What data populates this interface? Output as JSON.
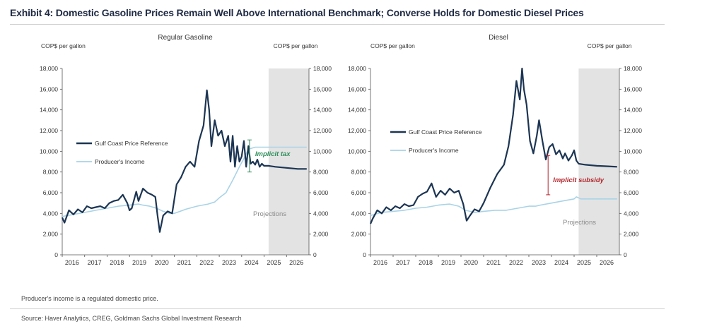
{
  "title": "Exhibit 4: Domestic Gasoline Prices Remain Well Above International Benchmark; Converse Holds for Domestic Diesel Prices",
  "footnote": "Producer's income is a regulated domestic price.",
  "source": "Source: Haver Analytics, CREG, Goldman Sachs Global Investment Research",
  "colors": {
    "gulf_coast": "#1c3553",
    "producer": "#a9d3e6",
    "implicit_tax": "#2f8f5b",
    "implicit_subsidy": "#b3252b",
    "projection_shade": "#e3e3e3"
  },
  "chart_data": [
    {
      "type": "line",
      "title": "Regular Gasoline",
      "ylabel_left": "COP$ per gallon",
      "ylabel_right": "COP$ per gallon",
      "ylim": [
        0,
        18000
      ],
      "yticks": [
        "0",
        "2,000",
        "4,000",
        "6,000",
        "8,000",
        "10,000",
        "12,000",
        "14,000",
        "16,000",
        "18,000"
      ],
      "xlim": [
        2016,
        2027
      ],
      "xticks": [
        "2016",
        "2017",
        "2018",
        "2019",
        "2020",
        "2021",
        "2022",
        "2023",
        "2024",
        "2025",
        "2026"
      ],
      "projection_start": 2025.2,
      "projection_label": "Projections",
      "annotation": "Implicit tax",
      "annotation_range": [
        2024.35,
        8000,
        11100
      ],
      "legend": [
        "Gulf Coast Price Reference",
        "Producer's Income"
      ],
      "series": [
        {
          "name": "Gulf Coast Price Reference",
          "x": [
            2016.0,
            2016.1,
            2016.3,
            2016.5,
            2016.7,
            2016.9,
            2017.1,
            2017.3,
            2017.5,
            2017.7,
            2017.9,
            2018.1,
            2018.3,
            2018.5,
            2018.7,
            2018.9,
            2019.0,
            2019.1,
            2019.3,
            2019.4,
            2019.6,
            2019.8,
            2020.0,
            2020.15,
            2020.25,
            2020.35,
            2020.5,
            2020.7,
            2020.9,
            2021.1,
            2021.3,
            2021.5,
            2021.7,
            2021.9,
            2022.1,
            2022.3,
            2022.45,
            2022.55,
            2022.65,
            2022.8,
            2022.95,
            2023.1,
            2023.25,
            2023.4,
            2023.5,
            2023.6,
            2023.7,
            2023.8,
            2023.9,
            2024.0,
            2024.1,
            2024.2,
            2024.3,
            2024.4,
            2024.5,
            2024.6,
            2024.7,
            2024.8,
            2024.9,
            2025.0,
            2025.2,
            2025.5,
            2026.0,
            2026.5,
            2026.9
          ],
          "y": [
            3600,
            3100,
            4300,
            3900,
            4400,
            4100,
            4700,
            4500,
            4600,
            4700,
            4500,
            5000,
            5200,
            5300,
            5800,
            5000,
            4300,
            4500,
            6100,
            5200,
            6400,
            6000,
            5800,
            5600,
            3800,
            2200,
            3800,
            4200,
            4000,
            6800,
            7500,
            8500,
            9000,
            8500,
            11000,
            12500,
            15900,
            14000,
            10500,
            13000,
            11500,
            12000,
            10500,
            11500,
            9000,
            11500,
            8500,
            10500,
            9000,
            9500,
            11000,
            8500,
            10500,
            8800,
            9000,
            8700,
            9200,
            8500,
            8800,
            8600,
            8600,
            8500,
            8400,
            8300,
            8300
          ]
        },
        {
          "name": "Producer's Income",
          "x": [
            2016.0,
            2016.5,
            2017.0,
            2017.5,
            2018.0,
            2018.5,
            2019.0,
            2019.4,
            2019.6,
            2019.9,
            2020.2,
            2020.5,
            2020.8,
            2021.0,
            2021.5,
            2022.0,
            2022.5,
            2022.8,
            2023.0,
            2023.3,
            2023.6,
            2023.9,
            2024.1,
            2024.3,
            2024.6,
            2025.0,
            2025.5,
            2026.0,
            2026.9
          ],
          "y": [
            3700,
            3900,
            4100,
            4300,
            4500,
            4700,
            4800,
            4900,
            4800,
            4700,
            4500,
            4200,
            4000,
            4000,
            4400,
            4700,
            4900,
            5100,
            5500,
            6000,
            7200,
            8500,
            9300,
            10200,
            10400,
            10400,
            10400,
            10400,
            10400
          ]
        }
      ]
    },
    {
      "type": "line",
      "title": "Diesel",
      "ylabel_left": "COP$ per gallon",
      "ylabel_right": "COP$ per gallon",
      "ylim": [
        0,
        18000
      ],
      "yticks": [
        "0",
        "2,000",
        "4,000",
        "6,000",
        "8,000",
        "10,000",
        "12,000",
        "14,000",
        "16,000",
        "18,000"
      ],
      "xlim": [
        2016,
        2027
      ],
      "xticks": [
        "2016",
        "2017",
        "2018",
        "2019",
        "2020",
        "2021",
        "2022",
        "2023",
        "2024",
        "2025",
        "2026"
      ],
      "projection_start": 2025.2,
      "projection_label": "Projections",
      "annotation": "Implicit subsidy",
      "annotation_range": [
        2023.85,
        5800,
        9600
      ],
      "legend": [
        "Gulf Coast Price Reference",
        "Producer's Income"
      ],
      "series": [
        {
          "name": "Gulf Coast Price Reference",
          "x": [
            2016.0,
            2016.1,
            2016.3,
            2016.5,
            2016.7,
            2016.9,
            2017.1,
            2017.3,
            2017.5,
            2017.7,
            2017.9,
            2018.1,
            2018.3,
            2018.5,
            2018.7,
            2018.9,
            2019.1,
            2019.3,
            2019.5,
            2019.7,
            2019.9,
            2020.1,
            2020.25,
            2020.4,
            2020.6,
            2020.8,
            2021.0,
            2021.3,
            2021.6,
            2021.9,
            2022.1,
            2022.3,
            2022.45,
            2022.6,
            2022.7,
            2022.78,
            2022.9,
            2023.05,
            2023.2,
            2023.35,
            2023.45,
            2023.6,
            2023.75,
            2023.9,
            2024.05,
            2024.2,
            2024.35,
            2024.5,
            2024.6,
            2024.75,
            2024.9,
            2025.0,
            2025.1,
            2025.2,
            2025.5,
            2026.0,
            2026.5,
            2026.9
          ],
          "y": [
            3000,
            3500,
            4300,
            4000,
            4600,
            4300,
            4700,
            4500,
            4900,
            4700,
            4800,
            5600,
            5900,
            6100,
            6900,
            5600,
            6200,
            5800,
            6400,
            6000,
            6200,
            4900,
            3300,
            3800,
            4400,
            4200,
            5000,
            6500,
            7800,
            8700,
            10500,
            13500,
            16800,
            15000,
            18000,
            16000,
            14500,
            11000,
            9800,
            11500,
            13000,
            11000,
            9200,
            10400,
            10700,
            9700,
            10100,
            9300,
            9800,
            9100,
            9600,
            10100,
            9100,
            8800,
            8700,
            8600,
            8550,
            8500
          ]
        },
        {
          "name": "Producer's Income",
          "x": [
            2016.0,
            2016.5,
            2017.0,
            2017.5,
            2018.0,
            2018.5,
            2019.0,
            2019.5,
            2019.9,
            2020.2,
            2020.6,
            2021.0,
            2021.5,
            2022.0,
            2022.5,
            2023.0,
            2023.3,
            2023.5,
            2024.0,
            2024.5,
            2025.0,
            2025.1,
            2025.3,
            2026.0,
            2026.9
          ],
          "y": [
            3800,
            4100,
            4200,
            4300,
            4500,
            4600,
            4800,
            4900,
            4700,
            4300,
            4100,
            4200,
            4300,
            4300,
            4500,
            4700,
            4700,
            4800,
            5000,
            5200,
            5400,
            5600,
            5400,
            5400,
            5400
          ]
        }
      ]
    }
  ]
}
